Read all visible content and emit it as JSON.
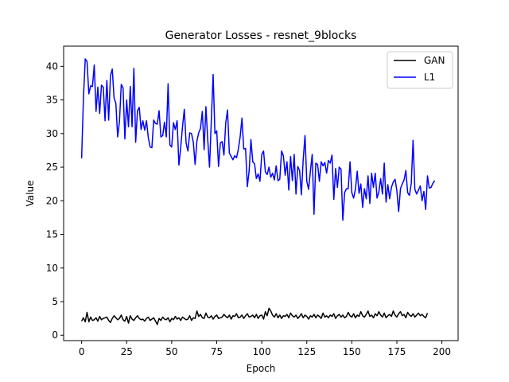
{
  "chart_data": {
    "type": "line",
    "title": "Generator Losses - resnet_9blocks",
    "xlabel": "Epoch",
    "ylabel": "Value",
    "xlim": [
      -10,
      209
    ],
    "ylim": [
      -0.8,
      43
    ],
    "xticks": [
      0,
      25,
      50,
      75,
      100,
      125,
      150,
      175,
      200
    ],
    "yticks": [
      0,
      5,
      10,
      15,
      20,
      25,
      30,
      35,
      40
    ],
    "grid": false,
    "legend_position": "top-right",
    "series": [
      {
        "name": "GAN",
        "color": "#000000",
        "values": [
          2.1,
          2.6,
          2.0,
          3.4,
          2.0,
          2.7,
          2.2,
          2.3,
          2.6,
          2.1,
          2.8,
          2.3,
          2.5,
          2.6,
          2.7,
          2.2,
          1.9,
          2.5,
          2.9,
          2.6,
          2.3,
          2.5,
          3.0,
          2.3,
          2.1,
          2.8,
          1.8,
          2.9,
          2.4,
          2.2,
          2.6,
          2.9,
          2.5,
          2.3,
          2.4,
          2.1,
          2.5,
          2.7,
          2.2,
          2.4,
          2.6,
          2.1,
          1.6,
          2.5,
          2.2,
          2.7,
          2.4,
          2.3,
          2.6,
          2.0,
          2.5,
          2.3,
          2.8,
          2.4,
          2.6,
          2.2,
          2.7,
          2.5,
          2.3,
          2.4,
          2.9,
          2.2,
          2.6,
          2.5,
          3.6,
          2.8,
          3.1,
          2.6,
          2.5,
          3.3,
          2.7,
          2.6,
          2.9,
          2.4,
          2.8,
          3.0,
          2.5,
          2.6,
          2.7,
          3.1,
          2.8,
          2.6,
          3.0,
          2.4,
          2.9,
          2.8,
          3.2,
          2.6,
          2.7,
          3.0,
          2.5,
          2.9,
          3.2,
          2.7,
          2.8,
          3.0,
          2.6,
          3.1,
          2.5,
          2.9,
          3.0,
          2.4,
          3.5,
          2.9,
          4.0,
          3.6,
          3.0,
          2.7,
          3.2,
          2.6,
          3.0,
          2.5,
          2.9,
          2.8,
          3.1,
          2.6,
          3.3,
          2.9,
          2.7,
          3.0,
          2.5,
          2.8,
          3.2,
          2.6,
          3.0,
          2.8,
          2.4,
          2.9,
          2.7,
          3.1,
          2.6,
          3.0,
          2.8,
          2.5,
          3.3,
          2.7,
          2.9,
          2.6,
          3.0,
          2.8,
          3.2,
          2.5,
          2.9,
          3.1,
          2.7,
          3.0,
          2.6,
          2.8,
          3.4,
          2.9,
          2.7,
          3.2,
          2.6,
          3.0,
          2.8,
          3.5,
          2.9,
          2.7,
          3.1,
          3.6,
          2.8,
          3.0,
          2.6,
          3.2,
          2.9,
          3.5,
          3.0,
          2.7,
          3.3,
          2.6,
          2.9,
          3.1,
          2.8,
          3.6,
          3.0,
          2.7,
          3.2,
          3.5,
          2.9,
          3.1,
          2.6,
          3.4,
          3.0,
          2.8,
          3.2,
          2.7,
          3.0,
          3.3,
          2.9,
          3.1,
          2.8,
          2.6,
          3.3
        ],
        "x_start": 0
      },
      {
        "name": "L1",
        "color": "#0000ff",
        "values": [
          26.3,
          35.3,
          41.1,
          40.7,
          35.9,
          37.1,
          37.0,
          40.2,
          33.3,
          36.9,
          33.0,
          37.2,
          36.9,
          31.9,
          37.9,
          32.0,
          38.6,
          39.6,
          35.3,
          34.5,
          29.5,
          31.8,
          37.3,
          36.8,
          29.2,
          35.0,
          31.0,
          37.0,
          31.0,
          39.7,
          28.7,
          33.4,
          33.9,
          30.6,
          31.9,
          30.5,
          31.9,
          29.4,
          28.0,
          27.9,
          32.0,
          31.5,
          31.4,
          33.4,
          29.5,
          29.7,
          31.7,
          29.5,
          37.4,
          28.3,
          28.0,
          31.6,
          30.6,
          31.9,
          25.3,
          27.9,
          31.0,
          33.6,
          28.6,
          27.4,
          30.1,
          30.0,
          28.7,
          25.4,
          28.9,
          30.1,
          30.8,
          33.3,
          27.6,
          34.0,
          29.1,
          25.0,
          32.0,
          38.8,
          30.0,
          30.4,
          25.1,
          28.6,
          28.8,
          26.8,
          31.6,
          33.5,
          27.1,
          26.6,
          26.1,
          26.7,
          26.4,
          27.7,
          29.5,
          32.3,
          27.7,
          27.8,
          22.1,
          24.5,
          29.1,
          25.8,
          25.5,
          23.3,
          24.0,
          22.9,
          26.9,
          27.4,
          24.3,
          23.9,
          25.0,
          23.5,
          24.1,
          23.1,
          25.2,
          23.0,
          23.2,
          27.4,
          26.7,
          23.8,
          25.8,
          21.6,
          26.6,
          23.0,
          26.9,
          21.0,
          25.1,
          24.5,
          20.9,
          26.1,
          29.7,
          22.9,
          21.7,
          24.4,
          26.9,
          18.0,
          25.6,
          25.4,
          22.9,
          25.8,
          25.2,
          25.7,
          24.1,
          26.0,
          25.6,
          26.8,
          20.2,
          24.8,
          22.0,
          25.0,
          24.7,
          17.1,
          21.2,
          21.8,
          21.8,
          25.8,
          21.2,
          20.4,
          21.7,
          24.4,
          21.1,
          22.5,
          19.0,
          21.8,
          20.3,
          23.7,
          19.6,
          24.1,
          22.0,
          24.1,
          20.4,
          21.3,
          23.3,
          21.0,
          25.6,
          19.8,
          22.4,
          20.3,
          22.0,
          22.8,
          23.2,
          21.5,
          18.4,
          21.8,
          22.5,
          23.1,
          24.5,
          21.2,
          20.8,
          22.6,
          29.0,
          21.7,
          21.0,
          21.6,
          22.2,
          20.0,
          21.4,
          18.7,
          23.7,
          21.9,
          22.0,
          22.6,
          23.0
        ],
        "x_start": 0
      }
    ]
  }
}
